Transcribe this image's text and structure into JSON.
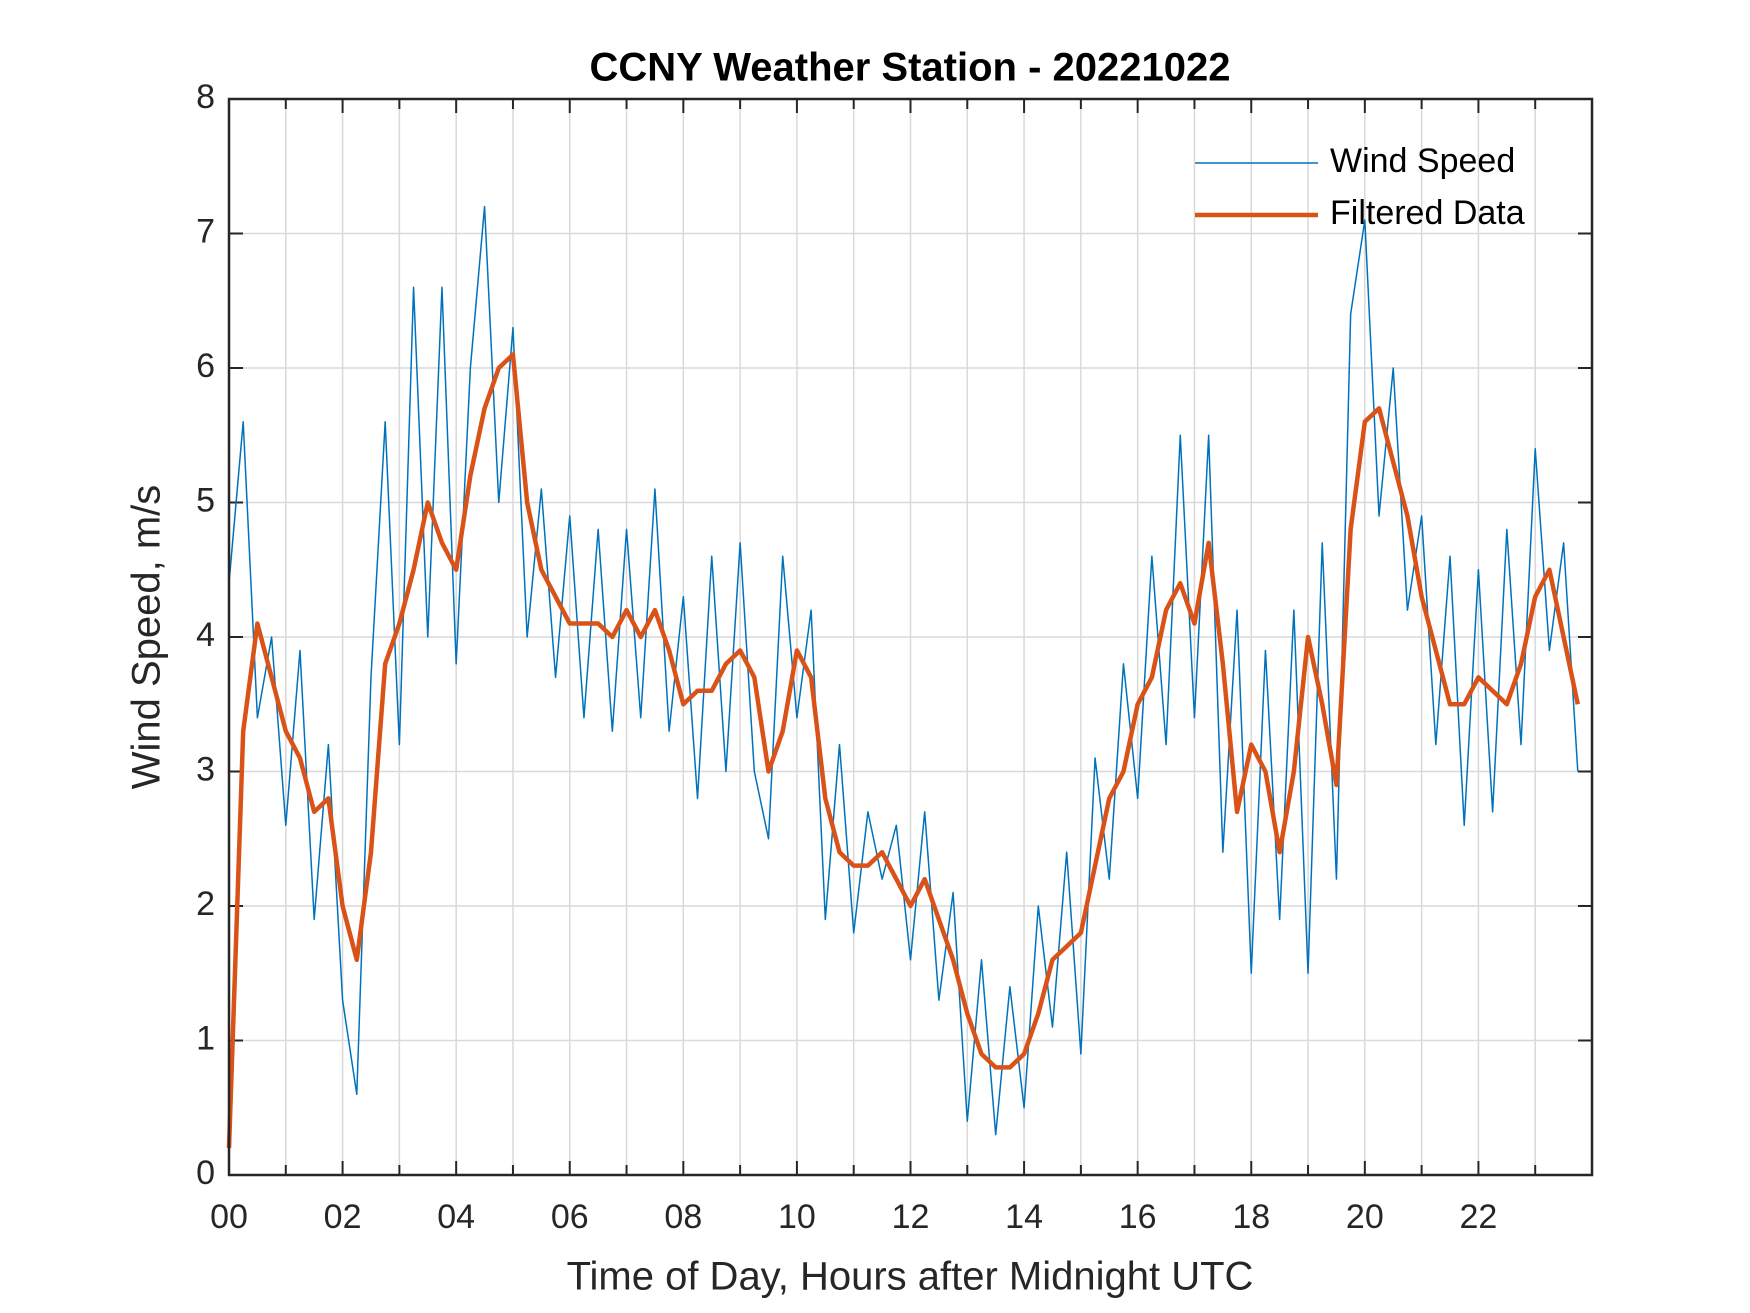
{
  "chart_data": {
    "type": "line",
    "title": "CCNY Weather Station - 20221022",
    "xlabel": "Time of Day, Hours after Midnight UTC",
    "ylabel": "Wind Speed, m/s",
    "x": [
      0,
      0.25,
      0.5,
      0.75,
      1,
      1.25,
      1.5,
      1.75,
      2,
      2.25,
      2.5,
      2.75,
      3,
      3.25,
      3.5,
      3.75,
      4,
      4.25,
      4.5,
      4.75,
      5,
      5.25,
      5.5,
      5.75,
      6,
      6.25,
      6.5,
      6.75,
      7,
      7.25,
      7.5,
      7.75,
      8,
      8.25,
      8.5,
      8.75,
      9,
      9.25,
      9.5,
      9.75,
      10,
      10.25,
      10.5,
      10.75,
      11,
      11.25,
      11.5,
      11.75,
      12,
      12.25,
      12.5,
      12.75,
      13,
      13.25,
      13.5,
      13.75,
      14,
      14.25,
      14.5,
      14.75,
      15,
      15.25,
      15.5,
      15.75,
      16,
      16.25,
      16.5,
      16.75,
      17,
      17.25,
      17.5,
      17.75,
      18,
      18.25,
      18.5,
      18.75,
      19,
      19.25,
      19.5,
      19.75,
      20,
      20.25,
      20.5,
      20.75,
      21,
      21.25,
      21.5,
      21.75,
      22,
      22.25,
      22.5,
      22.75,
      23,
      23.25,
      23.5,
      23.75
    ],
    "series": [
      {
        "name": "Wind Speed",
        "color": "#0072bd",
        "width": 1.5,
        "values": [
          4.4,
          5.6,
          3.4,
          4.0,
          2.6,
          3.9,
          1.9,
          3.2,
          1.3,
          0.6,
          3.7,
          5.6,
          3.2,
          6.6,
          4.0,
          6.6,
          3.8,
          6.0,
          7.2,
          5.0,
          6.3,
          4.0,
          5.1,
          3.7,
          4.9,
          3.4,
          4.8,
          3.3,
          4.8,
          3.4,
          5.1,
          3.3,
          4.3,
          2.8,
          4.6,
          3.0,
          4.7,
          3.0,
          2.5,
          4.6,
          3.4,
          4.2,
          1.9,
          3.2,
          1.8,
          2.7,
          2.2,
          2.6,
          1.6,
          2.7,
          1.3,
          2.1,
          0.4,
          1.6,
          0.3,
          1.4,
          0.5,
          2.0,
          1.1,
          2.4,
          0.9,
          3.1,
          2.2,
          3.8,
          2.8,
          4.6,
          3.2,
          5.5,
          3.4,
          5.5,
          2.4,
          4.2,
          1.5,
          3.9,
          1.9,
          4.2,
          1.5,
          4.7,
          2.2,
          6.4,
          7.1,
          4.9,
          6.0,
          4.2,
          4.9,
          3.2,
          4.6,
          2.6,
          4.5,
          2.7,
          4.8,
          3.2,
          5.4,
          3.9,
          4.7,
          3.0
        ]
      },
      {
        "name": "Filtered Data",
        "color": "#d95319",
        "width": 4.5,
        "values": [
          0.2,
          3.3,
          4.1,
          3.7,
          3.3,
          3.1,
          2.7,
          2.8,
          2.0,
          1.6,
          2.4,
          3.8,
          4.1,
          4.5,
          5.0,
          4.7,
          4.5,
          5.2,
          5.7,
          6.0,
          6.1,
          5.0,
          4.5,
          4.3,
          4.1,
          4.1,
          4.1,
          4.0,
          4.2,
          4.0,
          4.2,
          3.9,
          3.5,
          3.6,
          3.6,
          3.8,
          3.9,
          3.7,
          3.0,
          3.3,
          3.9,
          3.7,
          2.8,
          2.4,
          2.3,
          2.3,
          2.4,
          2.2,
          2.0,
          2.2,
          1.9,
          1.6,
          1.2,
          0.9,
          0.8,
          0.8,
          0.9,
          1.2,
          1.6,
          1.7,
          1.8,
          2.3,
          2.8,
          3.0,
          3.5,
          3.7,
          4.2,
          4.4,
          4.1,
          4.7,
          3.8,
          2.7,
          3.2,
          3.0,
          2.4,
          3.0,
          4.0,
          3.5,
          2.9,
          4.8,
          5.6,
          5.7,
          5.3,
          4.9,
          4.3,
          3.9,
          3.5,
          3.5,
          3.7,
          3.6,
          3.5,
          3.8,
          4.3,
          4.5,
          4.0,
          3.5
        ]
      }
    ],
    "xlim": [
      0,
      24
    ],
    "xticks": [
      {
        "value": 0,
        "label": "00"
      },
      {
        "value": 2,
        "label": "02"
      },
      {
        "value": 4,
        "label": "04"
      },
      {
        "value": 6,
        "label": "06"
      },
      {
        "value": 8,
        "label": "08"
      },
      {
        "value": 10,
        "label": "10"
      },
      {
        "value": 12,
        "label": "12"
      },
      {
        "value": 14,
        "label": "14"
      },
      {
        "value": 16,
        "label": "16"
      },
      {
        "value": 18,
        "label": "18"
      },
      {
        "value": 20,
        "label": "20"
      },
      {
        "value": 22,
        "label": "22"
      }
    ],
    "ylim": [
      0,
      8
    ],
    "yticks": [
      0,
      1,
      2,
      3,
      4,
      5,
      6,
      7,
      8
    ],
    "grid": true,
    "x_minor_grid": true,
    "legend": "upper right"
  }
}
